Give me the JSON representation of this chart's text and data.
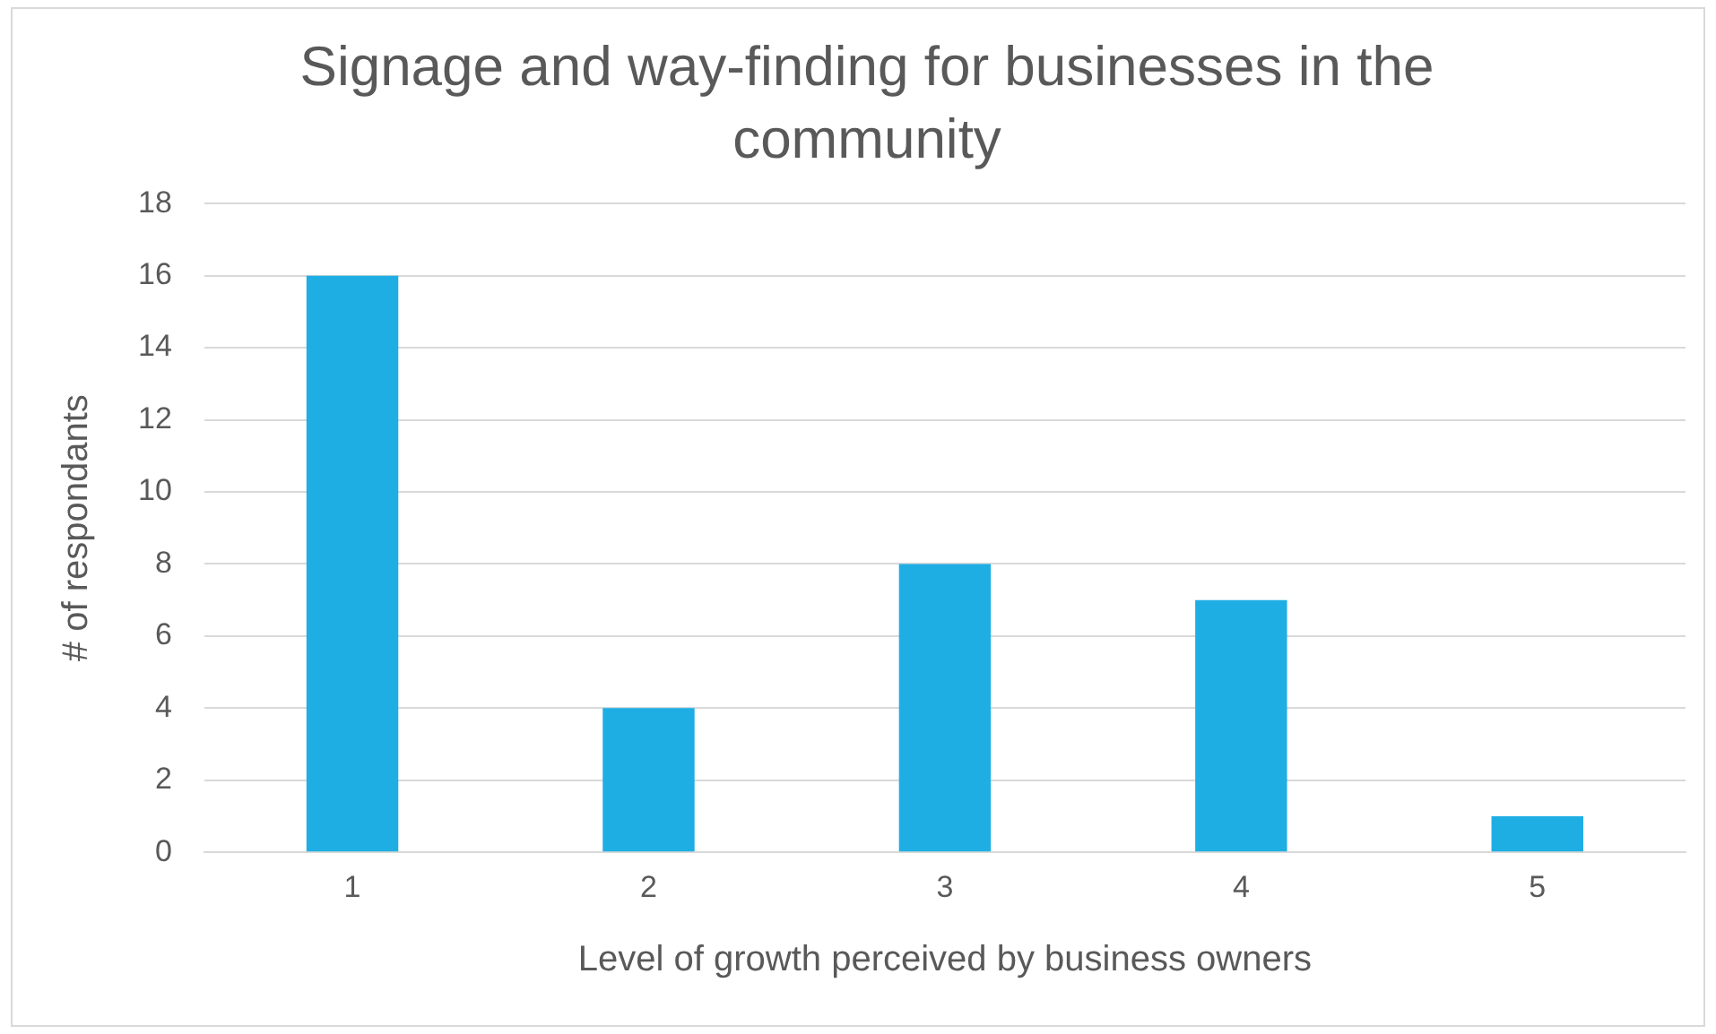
{
  "chart_data": {
    "type": "bar",
    "title": "Signage and way-finding for businesses in the community",
    "xlabel": "Level of growth perceived by business owners",
    "ylabel": "# of respondants",
    "categories": [
      "1",
      "2",
      "3",
      "4",
      "5"
    ],
    "values": [
      16,
      4,
      8,
      7,
      1
    ],
    "color": "#1eaee4",
    "ylim": [
      0,
      18
    ],
    "yticks": [
      0,
      2,
      4,
      6,
      8,
      10,
      12,
      14,
      16,
      18
    ],
    "grid": "y",
    "legend": false
  }
}
